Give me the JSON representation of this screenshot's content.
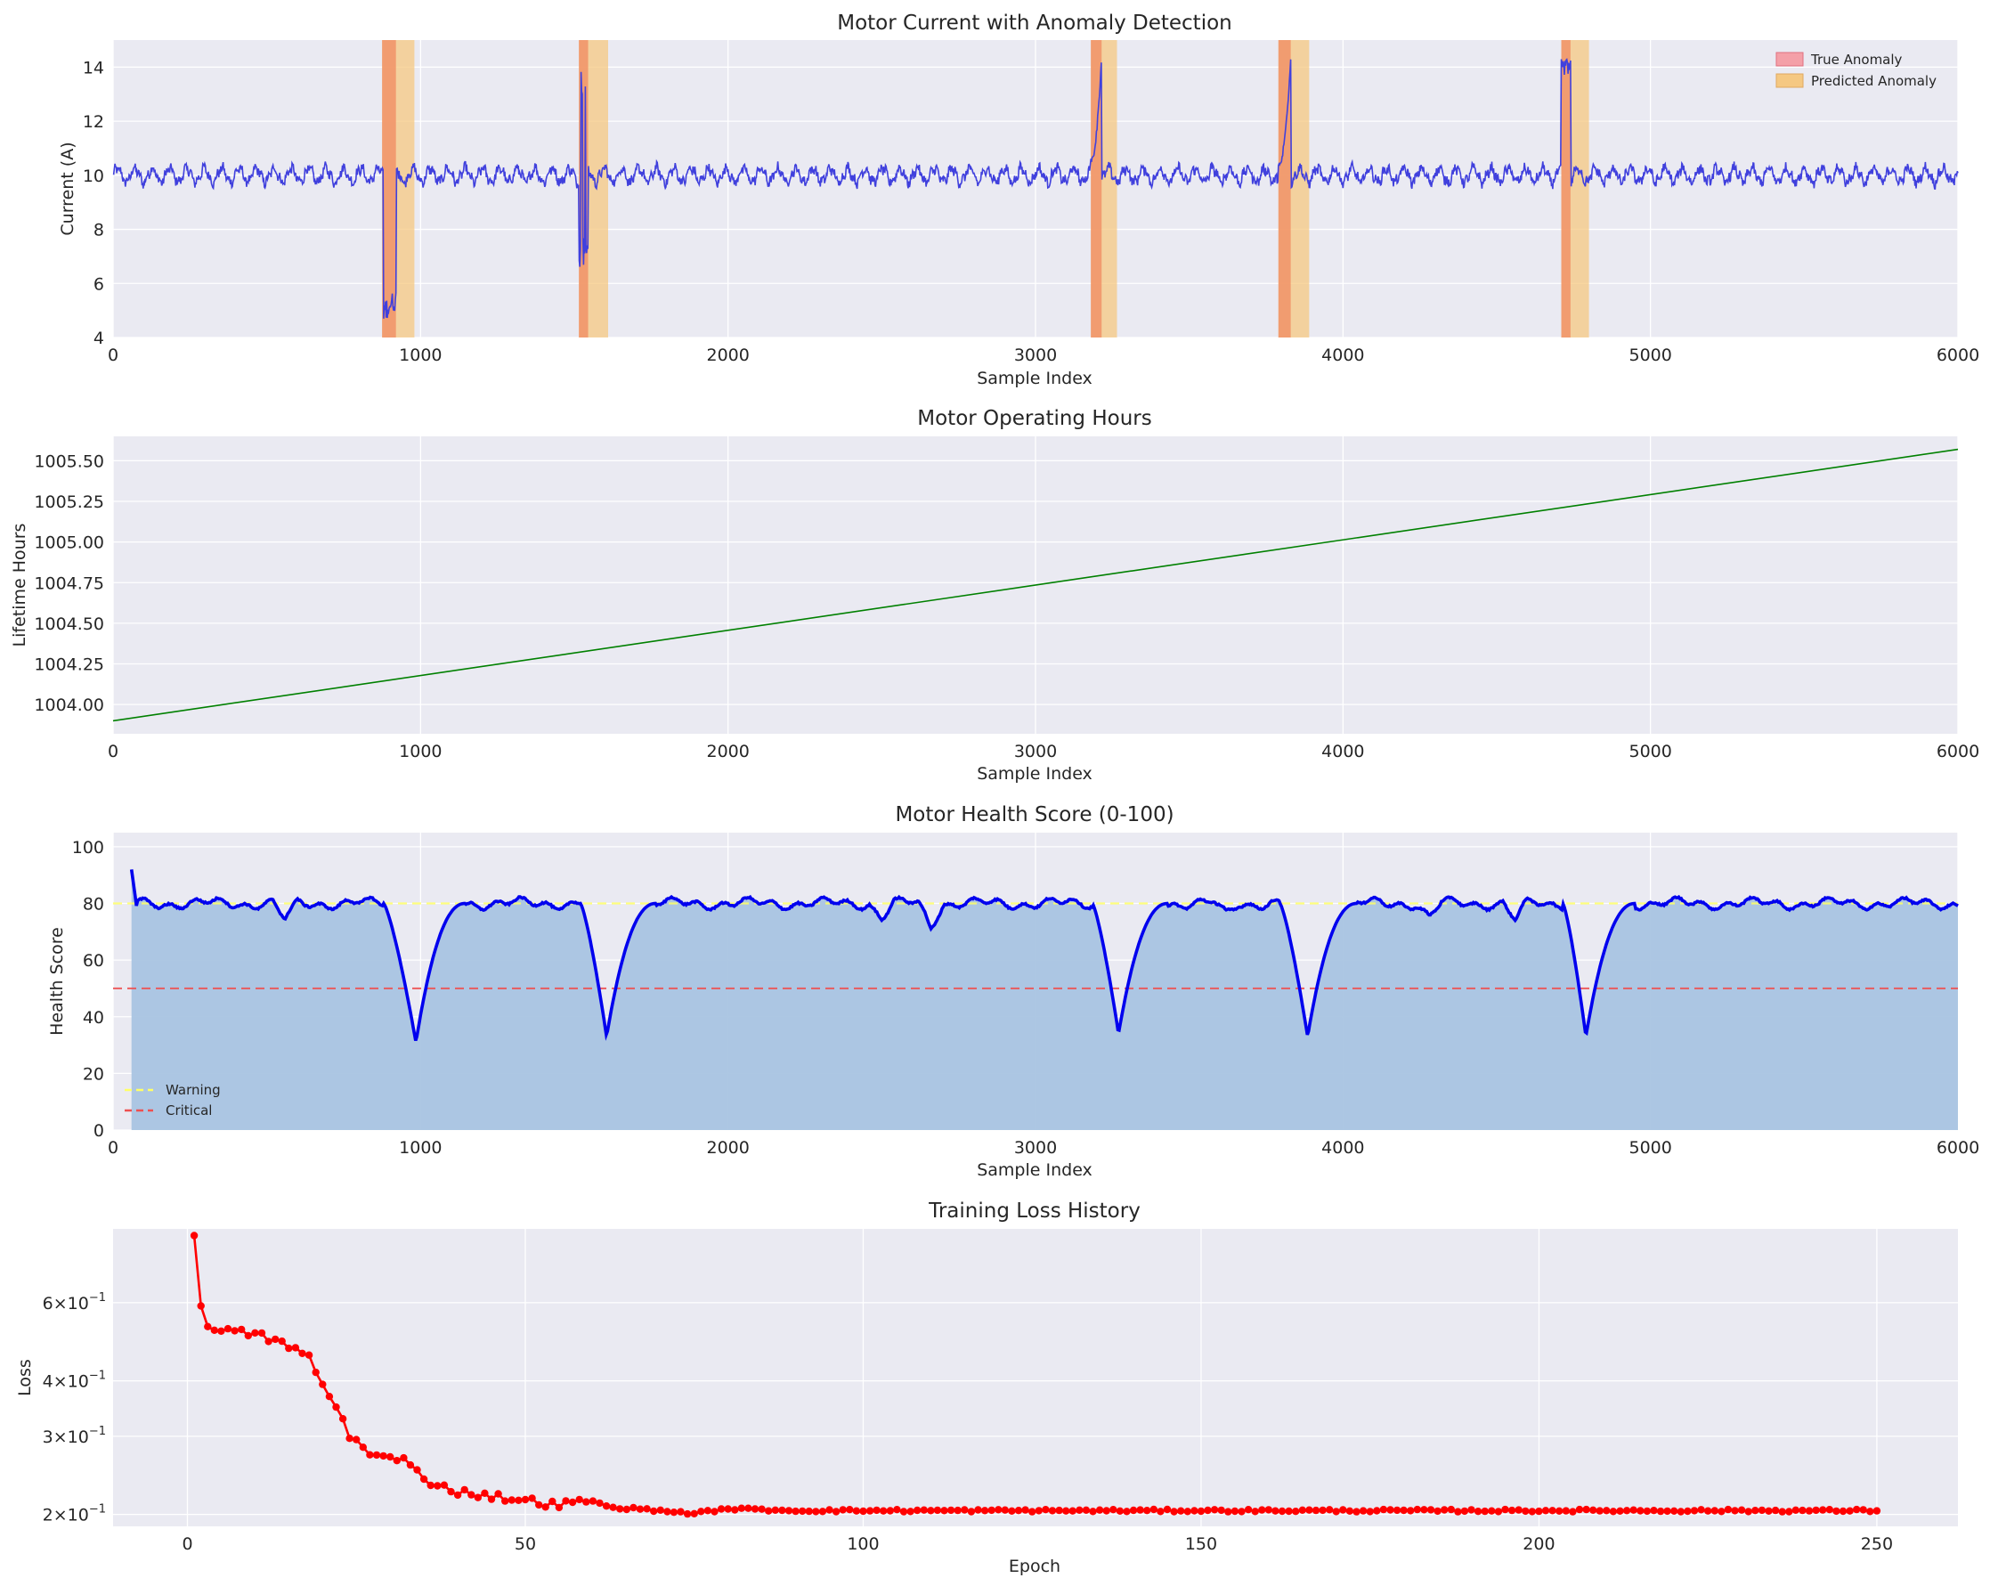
{
  "figure": {
    "background": "#ffffff",
    "axes_bg": "#eaeaf2",
    "grid_color": "#ffffff"
  },
  "chart_data": [
    {
      "id": "current",
      "type": "line",
      "title": "Motor Current with Anomaly Detection",
      "xlabel": "Sample Index",
      "ylabel": "Current (A)",
      "xlim": [
        0,
        6000
      ],
      "ylim": [
        4,
        15
      ],
      "xticks": [
        0,
        1000,
        2000,
        3000,
        4000,
        5000,
        6000
      ],
      "yticks": [
        4,
        6,
        8,
        10,
        12,
        14
      ],
      "color": "#4040dd",
      "baseline": 10,
      "true_anomaly_color": "#f4a0a8",
      "predicted_anomaly_color": "#f5c882",
      "true_anomalies": [
        [
          875,
          920
        ],
        [
          1515,
          1545
        ],
        [
          3180,
          3215
        ],
        [
          3790,
          3830
        ],
        [
          4710,
          4740
        ]
      ],
      "predicted_anomalies": [
        [
          875,
          980
        ],
        [
          1515,
          1610
        ],
        [
          3180,
          3265
        ],
        [
          3790,
          3890
        ],
        [
          4710,
          4800
        ]
      ],
      "events": [
        {
          "type": "drop",
          "range": [
            880,
            920
          ],
          "level": 5.0
        },
        {
          "type": "oscillation",
          "range": [
            1515,
            1545
          ],
          "low": 7.2,
          "high": 13.4
        },
        {
          "type": "ramp",
          "range": [
            3180,
            3215
          ],
          "from": 10.5,
          "to": 14.5
        },
        {
          "type": "ramp",
          "range": [
            3790,
            3830
          ],
          "from": 10.3,
          "to": 14.4
        },
        {
          "type": "spike",
          "range": [
            4710,
            4740
          ],
          "level": 14.0
        }
      ],
      "legend": [
        {
          "label": "True Anomaly",
          "color": "#f4a0a8"
        },
        {
          "label": "Predicted Anomaly",
          "color": "#f5c882"
        }
      ],
      "legend_position": "upper right"
    },
    {
      "id": "hours",
      "type": "line",
      "title": "Motor Operating Hours",
      "xlabel": "Sample Index",
      "ylabel": "Lifetime Hours",
      "xlim": [
        0,
        6000
      ],
      "ylim": [
        1003.82,
        1005.65
      ],
      "xticks": [
        0,
        1000,
        2000,
        3000,
        4000,
        5000,
        6000
      ],
      "yticks": [
        1004.0,
        1004.25,
        1004.5,
        1004.75,
        1005.0,
        1005.25,
        1005.5
      ],
      "ytick_labels": [
        "1004.00",
        "1004.25",
        "1004.50",
        "1004.75",
        "1005.00",
        "1005.25",
        "1005.50"
      ],
      "x": [
        0,
        6000
      ],
      "y": [
        1003.9,
        1005.57
      ],
      "color": "#008000"
    },
    {
      "id": "health",
      "type": "area",
      "title": "Motor Health Score (0-100)",
      "xlabel": "Sample Index",
      "ylabel": "Health Score",
      "xlim": [
        0,
        6000
      ],
      "ylim": [
        0,
        105
      ],
      "xticks": [
        0,
        1000,
        2000,
        3000,
        4000,
        5000,
        6000
      ],
      "yticks": [
        0,
        20,
        40,
        60,
        80,
        100
      ],
      "color": "#0000ee",
      "fill_color": "#a9c4e2",
      "start": 60,
      "initial_peak": 92,
      "baseline": 80,
      "dips": [
        {
          "start": 880,
          "min_at": 985,
          "min": 31
        },
        {
          "start": 1520,
          "min_at": 1605,
          "min": 33
        },
        {
          "start": 3185,
          "min_at": 3270,
          "min": 34
        },
        {
          "start": 3795,
          "min_at": 3885,
          "min": 33
        },
        {
          "start": 4715,
          "min_at": 4790,
          "min": 33
        }
      ],
      "thresholds": [
        {
          "label": "Warning",
          "value": 80,
          "color": "#ffff66"
        },
        {
          "label": "Critical",
          "value": 50,
          "color": "#ee5050"
        }
      ],
      "legend_position": "lower left"
    },
    {
      "id": "loss",
      "type": "line",
      "title": "Training Loss History",
      "xlabel": "Epoch",
      "ylabel": "Loss",
      "yscale": "log",
      "xlim": [
        -11,
        262
      ],
      "ylim": [
        0.188,
        0.88
      ],
      "xticks": [
        0,
        50,
        100,
        150,
        200,
        250
      ],
      "yticks": [
        0.2,
        0.3,
        0.4,
        0.6
      ],
      "ytick_labels": [
        [
          "2",
          "−1"
        ],
        [
          "3",
          "−1"
        ],
        [
          "4",
          "−1"
        ],
        [
          "6",
          "−1"
        ]
      ],
      "color": "#ff0000",
      "epochs": [
        1,
        250
      ],
      "anchors": [
        [
          1,
          0.85
        ],
        [
          2,
          0.59
        ],
        [
          3,
          0.53
        ],
        [
          4,
          0.52
        ],
        [
          10,
          0.51
        ],
        [
          15,
          0.48
        ],
        [
          18,
          0.45
        ],
        [
          20,
          0.39
        ],
        [
          22,
          0.35
        ],
        [
          24,
          0.3
        ],
        [
          26,
          0.285
        ],
        [
          28,
          0.27
        ],
        [
          32,
          0.265
        ],
        [
          35,
          0.24
        ],
        [
          40,
          0.225
        ],
        [
          45,
          0.22
        ],
        [
          55,
          0.21
        ],
        [
          60,
          0.215
        ],
        [
          62,
          0.208
        ],
        [
          68,
          0.205
        ],
        [
          75,
          0.201
        ],
        [
          80,
          0.206
        ],
        [
          90,
          0.204
        ],
        [
          100,
          0.204
        ],
        [
          150,
          0.204
        ],
        [
          200,
          0.204
        ],
        [
          250,
          0.204
        ]
      ]
    }
  ]
}
